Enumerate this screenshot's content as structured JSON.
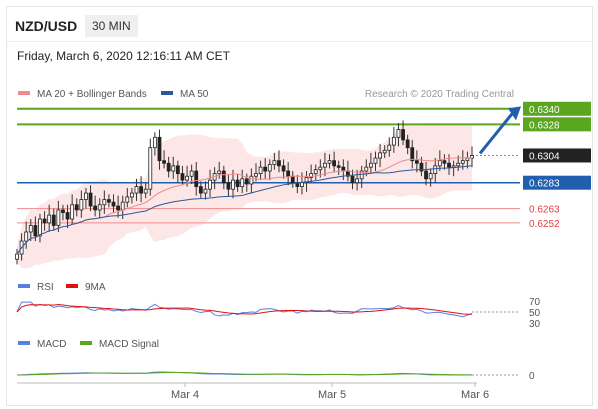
{
  "header": {
    "pair": "NZD/USD",
    "timeframe": "30 MIN",
    "datetime": "Friday, March 6, 2020 12:16:11 AM CET"
  },
  "colors": {
    "ma20": "#f08a8a",
    "ma50": "#2b5a9b",
    "green": "#5aa61e",
    "red": "#e04040",
    "blue": "#1f5fae",
    "arrow": "#1f5fae"
  },
  "legend": {
    "ma20": "MA 20 + Bollinger Bands",
    "ma50": "MA 50",
    "credit": "Research © 2020 Trading Central"
  },
  "rsi_legend": {
    "rsi": "RSI",
    "ma": "9MA"
  },
  "macd_legend": {
    "macd": "MACD",
    "signal": "MACD Signal"
  },
  "chart_data": {
    "type": "line",
    "title": "NZD/USD 30 MIN",
    "x_labels": [
      "Mar 4",
      "Mar 5",
      "Mar 6"
    ],
    "ylim": [
      0.6218,
      0.6346
    ],
    "price_levels": [
      {
        "label": "0.6340",
        "value": 0.634,
        "kind": "target"
      },
      {
        "label": "0.6328",
        "value": 0.6328,
        "kind": "target"
      },
      {
        "label": "0.6304",
        "value": 0.6304,
        "kind": "last"
      },
      {
        "label": "0.6283",
        "value": 0.6283,
        "kind": "pivot"
      },
      {
        "label": "0.6263",
        "value": 0.6263,
        "kind": "support"
      },
      {
        "label": "0.6252",
        "value": 0.6252,
        "kind": "support"
      }
    ],
    "close_series": [
      0.6228,
      0.6238,
      0.6245,
      0.625,
      0.6242,
      0.6255,
      0.6252,
      0.6258,
      0.625,
      0.6262,
      0.626,
      0.6255,
      0.6266,
      0.6262,
      0.627,
      0.6275,
      0.6265,
      0.6262,
      0.6266,
      0.627,
      0.6268,
      0.6265,
      0.6262,
      0.6268,
      0.6272,
      0.6275,
      0.628,
      0.6275,
      0.6278,
      0.631,
      0.6318,
      0.63,
      0.6298,
      0.6292,
      0.6296,
      0.629,
      0.6285,
      0.6288,
      0.6292,
      0.628,
      0.6275,
      0.6278,
      0.6285,
      0.629,
      0.6292,
      0.6283,
      0.6278,
      0.6285,
      0.628,
      0.6286,
      0.6282,
      0.6288,
      0.629,
      0.6295,
      0.6292,
      0.6297,
      0.63,
      0.6296,
      0.6292,
      0.6288,
      0.6283,
      0.628,
      0.6283,
      0.6287,
      0.629,
      0.6293,
      0.6295,
      0.6298,
      0.63,
      0.6296,
      0.6295,
      0.6292,
      0.6288,
      0.6283,
      0.6286,
      0.6292,
      0.6295,
      0.6298,
      0.6302,
      0.6306,
      0.6308,
      0.6312,
      0.6318,
      0.6324,
      0.6316,
      0.631,
      0.63,
      0.6298,
      0.6292,
      0.6286,
      0.629,
      0.6296,
      0.63,
      0.6298,
      0.6295,
      0.6296,
      0.6298,
      0.63,
      0.6302,
      0.6304
    ],
    "rsi": {
      "ticks": [
        70,
        50,
        30
      ]
    },
    "macd": {
      "ticks": [
        0
      ]
    }
  }
}
